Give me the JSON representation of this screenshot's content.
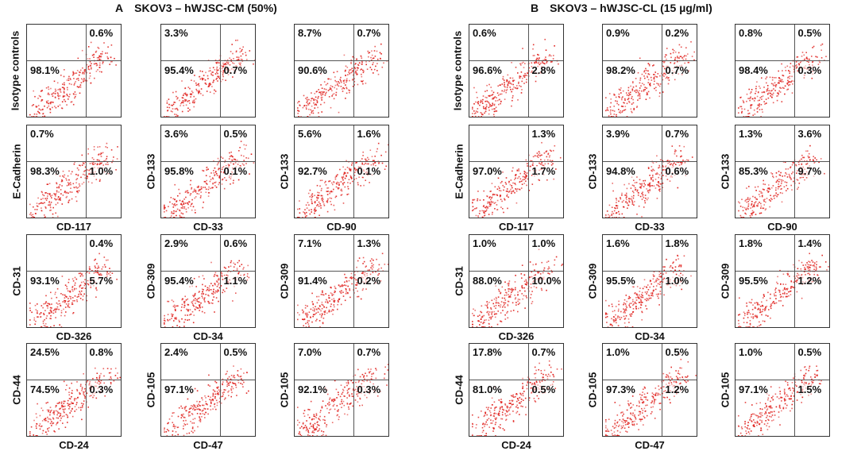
{
  "panel_a": {
    "letter": "A",
    "title": "SKOV3 – hWJSC-CM (50%)"
  },
  "panel_b": {
    "letter": "B",
    "title": "SKOV3 – hWJSC-CL (15 µg/ml)"
  },
  "chart_data": [
    {
      "type": "scatter",
      "panel": "A",
      "row": 1,
      "row_label": "Isotype controls",
      "plots": [
        {
          "xlabel": "",
          "quadrants": {
            "ul": "",
            "ur": "0.6%",
            "ll": "98.1%",
            "lr": ""
          }
        },
        {
          "xlabel": "",
          "quadrants": {
            "ul": "3.3%",
            "ur": "",
            "ll": "95.4%",
            "lr": "0.7%"
          }
        },
        {
          "xlabel": "",
          "quadrants": {
            "ul": "8.7%",
            "ur": "0.7%",
            "ll": "90.6%",
            "lr": ""
          }
        }
      ]
    },
    {
      "type": "scatter",
      "panel": "A",
      "row": 2,
      "row_label": "",
      "plots": [
        {
          "ylabel": "E-Cadherin",
          "xlabel": "CD-117",
          "quadrants": {
            "ul": "0.7%",
            "ur": "",
            "ll": "98.3%",
            "lr": "1.0%"
          }
        },
        {
          "ylabel": "CD-133",
          "xlabel": "CD-33",
          "quadrants": {
            "ul": "3.6%",
            "ur": "0.5%",
            "ll": "95.8%",
            "lr": "0.1%"
          }
        },
        {
          "ylabel": "CD-133",
          "xlabel": "CD-90",
          "quadrants": {
            "ul": "5.6%",
            "ur": "1.6%",
            "ll": "92.7%",
            "lr": "0.1%"
          }
        }
      ]
    },
    {
      "type": "scatter",
      "panel": "A",
      "row": 3,
      "row_label": "",
      "plots": [
        {
          "ylabel": "CD-31",
          "xlabel": "CD-326",
          "quadrants": {
            "ul": "",
            "ur": "0.4%",
            "ll": "93.1%",
            "lr": "5.7%"
          }
        },
        {
          "ylabel": "CD-309",
          "xlabel": "CD-34",
          "quadrants": {
            "ul": "2.9%",
            "ur": "0.6%",
            "ll": "95.4%",
            "lr": "1.1%"
          }
        },
        {
          "ylabel": "CD-309",
          "xlabel": "",
          "quadrants": {
            "ul": "7.1%",
            "ur": "1.3%",
            "ll": "91.4%",
            "lr": "0.2%"
          }
        }
      ]
    },
    {
      "type": "scatter",
      "panel": "A",
      "row": 4,
      "row_label": "",
      "plots": [
        {
          "ylabel": "CD-44",
          "xlabel": "CD-24",
          "quadrants": {
            "ul": "24.5%",
            "ur": "0.8%",
            "ll": "74.5%",
            "lr": "0.3%"
          }
        },
        {
          "ylabel": "CD-105",
          "xlabel": "CD-47",
          "quadrants": {
            "ul": "2.4%",
            "ur": "0.5%",
            "ll": "97.1%",
            "lr": ""
          }
        },
        {
          "ylabel": "CD-105",
          "xlabel": "",
          "quadrants": {
            "ul": "7.0%",
            "ur": "0.7%",
            "ll": "92.1%",
            "lr": "0.3%"
          }
        }
      ]
    },
    {
      "type": "scatter",
      "panel": "B",
      "row": 1,
      "row_label": "Isotype controls",
      "plots": [
        {
          "xlabel": "",
          "quadrants": {
            "ul": "0.6%",
            "ur": "",
            "ll": "96.6%",
            "lr": "2.8%"
          }
        },
        {
          "xlabel": "",
          "quadrants": {
            "ul": "0.9%",
            "ur": "0.2%",
            "ll": "98.2%",
            "lr": "0.7%"
          }
        },
        {
          "xlabel": "",
          "quadrants": {
            "ul": "0.8%",
            "ur": "0.5%",
            "ll": "98.4%",
            "lr": "0.3%"
          }
        }
      ]
    },
    {
      "type": "scatter",
      "panel": "B",
      "row": 2,
      "row_label": "",
      "plots": [
        {
          "ylabel": "E-Cadherin",
          "xlabel": "CD-117",
          "quadrants": {
            "ul": "",
            "ur": "1.3%",
            "ll": "97.0%",
            "lr": "1.7%"
          }
        },
        {
          "ylabel": "CD-133",
          "xlabel": "CD-33",
          "quadrants": {
            "ul": "3.9%",
            "ur": "0.7%",
            "ll": "94.8%",
            "lr": "0.6%"
          }
        },
        {
          "ylabel": "CD-133",
          "xlabel": "CD-90",
          "quadrants": {
            "ul": "1.3%",
            "ur": "3.6%",
            "ll": "85.3%",
            "lr": "9.7%"
          }
        }
      ]
    },
    {
      "type": "scatter",
      "panel": "B",
      "row": 3,
      "row_label": "",
      "plots": [
        {
          "ylabel": "CD-31",
          "xlabel": "CD-326",
          "quadrants": {
            "ul": "1.0%",
            "ur": "1.0%",
            "ll": "88.0%",
            "lr": "10.0%"
          }
        },
        {
          "ylabel": "CD-309",
          "xlabel": "CD-34",
          "quadrants": {
            "ul": "1.6%",
            "ur": "1.8%",
            "ll": "95.5%",
            "lr": "1.0%"
          }
        },
        {
          "ylabel": "CD-309",
          "xlabel": "",
          "quadrants": {
            "ul": "1.8%",
            "ur": "1.4%",
            "ll": "95.5%",
            "lr": "1.2%"
          }
        }
      ]
    },
    {
      "type": "scatter",
      "panel": "B",
      "row": 4,
      "row_label": "",
      "plots": [
        {
          "ylabel": "CD-44",
          "xlabel": "CD-24",
          "quadrants": {
            "ul": "17.8%",
            "ur": "0.7%",
            "ll": "81.0%",
            "lr": "0.5%"
          }
        },
        {
          "ylabel": "CD-105",
          "xlabel": "CD-47",
          "quadrants": {
            "ul": "1.0%",
            "ur": "0.5%",
            "ll": "97.3%",
            "lr": "1.2%"
          }
        },
        {
          "ylabel": "CD-105",
          "xlabel": "",
          "quadrants": {
            "ul": "1.0%",
            "ur": "0.5%",
            "ll": "97.1%",
            "lr": "1.5%"
          }
        }
      ]
    }
  ],
  "colors": {
    "dots": "#e0201c",
    "frame": "#333333",
    "gate": "#555555"
  }
}
